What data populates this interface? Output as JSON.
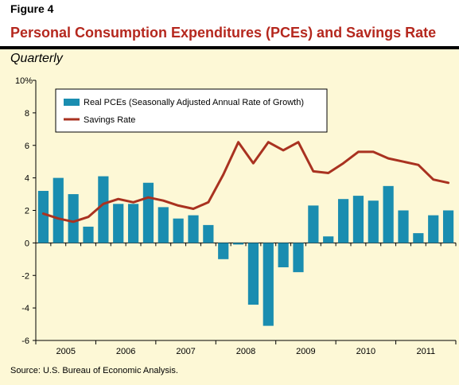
{
  "figure_label": "Figure 4",
  "title": "Personal Consumption Expenditures (PCEs) and Savings Rate",
  "subtitle": "Quarterly",
  "source": "Source: U.S. Bureau of Economic Analysis.",
  "colors": {
    "title": "#b5281e",
    "bars": "#1a8db0",
    "line": "#a93220",
    "panel": "#fdf8d6"
  },
  "chart_data": {
    "type": "bar",
    "y_unit_suffix": "%",
    "ylim": [
      -6,
      10
    ],
    "yticks": [
      -6,
      -4,
      -2,
      0,
      2,
      4,
      6,
      8,
      10
    ],
    "years": [
      "2005",
      "2006",
      "2007",
      "2008",
      "2009",
      "2010",
      "2011"
    ],
    "quarters_per_year": 4,
    "legend_position": "top-left",
    "grid": false,
    "series": [
      {
        "name": "Real PCEs (Seasonally Adjusted Annual Rate of Growth)",
        "type": "bar",
        "values": [
          3.2,
          4.0,
          3.0,
          1.0,
          4.1,
          2.4,
          2.4,
          3.7,
          2.2,
          1.5,
          1.7,
          1.1,
          -1.0,
          -0.1,
          -3.8,
          -5.1,
          -1.5,
          -1.8,
          2.3,
          0.4,
          2.7,
          2.9,
          2.6,
          3.5,
          2.0,
          0.6,
          1.7,
          2.0
        ]
      },
      {
        "name": "Savings Rate",
        "type": "line",
        "values": [
          1.8,
          1.5,
          1.3,
          1.6,
          2.4,
          2.7,
          2.5,
          2.8,
          2.6,
          2.3,
          2.1,
          2.5,
          4.2,
          6.2,
          4.9,
          6.2,
          5.7,
          6.2,
          4.4,
          4.3,
          4.9,
          5.6,
          5.6,
          5.2,
          5.0,
          4.8,
          3.9,
          3.7
        ]
      }
    ]
  }
}
